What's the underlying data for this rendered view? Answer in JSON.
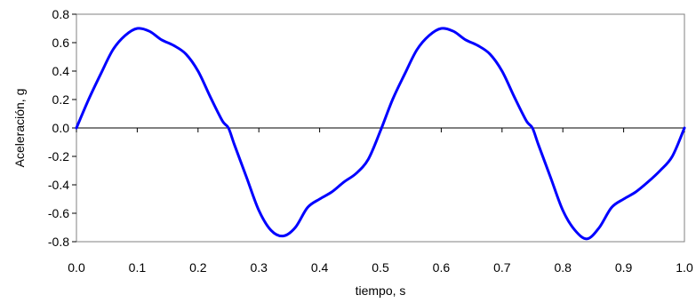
{
  "chart_data": {
    "type": "line",
    "title": "",
    "xlabel": "tiempo, s",
    "ylabel": "Aceleración, g",
    "xlim": [
      0,
      1
    ],
    "ylim": [
      -0.8,
      0.8
    ],
    "xticks": [
      "0.0",
      "0.1",
      "0.2",
      "0.3",
      "0.4",
      "0.5",
      "0.6",
      "0.7",
      "0.8",
      "0.9",
      "1.0"
    ],
    "yticks": [
      "0.8",
      "0.6",
      "0.4",
      "0.2",
      "0.0",
      "-0.2",
      "-0.4",
      "-0.6",
      "-0.8"
    ],
    "grid": false,
    "legend": "none",
    "series": [
      {
        "color": "#0000ff",
        "x": [
          0,
          0.02,
          0.04,
          0.06,
          0.08,
          0.1,
          0.12,
          0.14,
          0.16,
          0.18,
          0.2,
          0.22,
          0.24,
          0.25,
          0.26,
          0.28,
          0.3,
          0.32,
          0.34,
          0.36,
          0.38,
          0.4,
          0.42,
          0.44,
          0.46,
          0.48,
          0.5,
          0.52,
          0.54,
          0.56,
          0.58,
          0.6,
          0.62,
          0.64,
          0.66,
          0.68,
          0.7,
          0.72,
          0.74,
          0.75,
          0.76,
          0.78,
          0.8,
          0.82,
          0.84,
          0.86,
          0.88,
          0.9,
          0.92,
          0.94,
          0.96,
          0.98,
          1.0
        ],
        "y": [
          0,
          0.2,
          0.38,
          0.55,
          0.65,
          0.7,
          0.68,
          0.62,
          0.58,
          0.52,
          0.4,
          0.22,
          0.05,
          0.0,
          -0.12,
          -0.35,
          -0.58,
          -0.72,
          -0.76,
          -0.7,
          -0.56,
          -0.5,
          -0.45,
          -0.38,
          -0.32,
          -0.22,
          -0.02,
          0.2,
          0.38,
          0.55,
          0.65,
          0.7,
          0.68,
          0.62,
          0.58,
          0.52,
          0.4,
          0.22,
          0.05,
          0.0,
          -0.12,
          -0.35,
          -0.58,
          -0.72,
          -0.78,
          -0.7,
          -0.56,
          -0.5,
          -0.45,
          -0.38,
          -0.3,
          -0.2,
          0.0
        ]
      }
    ]
  }
}
